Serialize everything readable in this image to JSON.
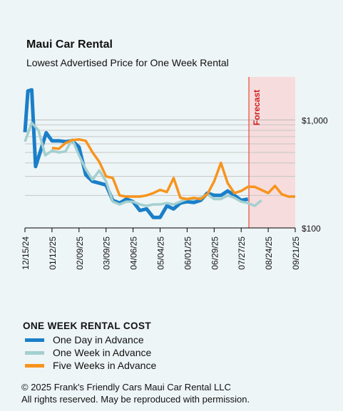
{
  "header": {
    "title": "Maui Car Rental",
    "subtitle": "Lowest Advertised Price for One Week Rental"
  },
  "chart_data": {
    "type": "line",
    "title": "Maui Car Rental",
    "subtitle": "Lowest Advertised Price for One Week Rental",
    "y_scale": "log",
    "ylim": [
      100,
      2500
    ],
    "y_ticks": [
      {
        "value": 1000,
        "label": "$1,000"
      },
      {
        "value": 100,
        "label": "$100"
      }
    ],
    "x_range": [
      "2024-12-15",
      "2025-09-21"
    ],
    "x_ticks": [
      "12/15/24",
      "01/12/25",
      "02/09/25",
      "03/09/25",
      "04/06/25",
      "05/04/25",
      "06/01/25",
      "06/29/25",
      "07/27/25",
      "08/24/25",
      "09/21/25"
    ],
    "forecast": {
      "label": "Forecast",
      "start": "2025-08-04",
      "end": "2025-09-21"
    },
    "legend_title": "ONE WEEK RENTAL COST",
    "legend_position": "bottom",
    "grid": true,
    "series": [
      {
        "name": "One Day in Advance",
        "color": "#1a7fc9",
        "points": [
          [
            "2024-12-15",
            770
          ],
          [
            "2024-12-18",
            1850
          ],
          [
            "2024-12-22",
            1900
          ],
          [
            "2024-12-26",
            370
          ],
          [
            "2024-12-30",
            480
          ],
          [
            "2025-01-06",
            760
          ],
          [
            "2025-01-12",
            640
          ],
          [
            "2025-01-19",
            640
          ],
          [
            "2025-01-26",
            630
          ],
          [
            "2025-02-02",
            640
          ],
          [
            "2025-02-09",
            560
          ],
          [
            "2025-02-16",
            310
          ],
          [
            "2025-02-23",
            270
          ],
          [
            "2025-03-02",
            260
          ],
          [
            "2025-03-09",
            250
          ],
          [
            "2025-03-16",
            180
          ],
          [
            "2025-03-23",
            170
          ],
          [
            "2025-03-30",
            185
          ],
          [
            "2025-04-06",
            175
          ],
          [
            "2025-04-13",
            145
          ],
          [
            "2025-04-20",
            150
          ],
          [
            "2025-04-27",
            125
          ],
          [
            "2025-05-04",
            125
          ],
          [
            "2025-05-11",
            160
          ],
          [
            "2025-05-18",
            150
          ],
          [
            "2025-05-25",
            170
          ],
          [
            "2025-06-01",
            175
          ],
          [
            "2025-06-08",
            172
          ],
          [
            "2025-06-15",
            180
          ],
          [
            "2025-06-22",
            210
          ],
          [
            "2025-06-29",
            200
          ],
          [
            "2025-07-06",
            200
          ],
          [
            "2025-07-13",
            220
          ],
          [
            "2025-07-20",
            200
          ],
          [
            "2025-07-27",
            180
          ],
          [
            "2025-08-03",
            185
          ]
        ]
      },
      {
        "name": "One Week in Advance",
        "color": "#a4cfd0",
        "points": [
          [
            "2024-12-15",
            630
          ],
          [
            "2024-12-22",
            940
          ],
          [
            "2024-12-29",
            800
          ],
          [
            "2025-01-05",
            470
          ],
          [
            "2025-01-12",
            520
          ],
          [
            "2025-01-19",
            500
          ],
          [
            "2025-01-26",
            510
          ],
          [
            "2025-02-02",
            660
          ],
          [
            "2025-02-09",
            470
          ],
          [
            "2025-02-16",
            350
          ],
          [
            "2025-02-23",
            280
          ],
          [
            "2025-03-02",
            340
          ],
          [
            "2025-03-09",
            270
          ],
          [
            "2025-03-16",
            175
          ],
          [
            "2025-03-23",
            165
          ],
          [
            "2025-03-30",
            175
          ],
          [
            "2025-04-06",
            175
          ],
          [
            "2025-04-13",
            165
          ],
          [
            "2025-04-20",
            160
          ],
          [
            "2025-04-27",
            165
          ],
          [
            "2025-05-04",
            165
          ],
          [
            "2025-05-11",
            170
          ],
          [
            "2025-05-18",
            165
          ],
          [
            "2025-05-25",
            175
          ],
          [
            "2025-06-01",
            185
          ],
          [
            "2025-06-08",
            185
          ],
          [
            "2025-06-15",
            190
          ],
          [
            "2025-06-22",
            205
          ],
          [
            "2025-06-29",
            185
          ],
          [
            "2025-07-06",
            185
          ],
          [
            "2025-07-13",
            200
          ],
          [
            "2025-07-20",
            190
          ],
          [
            "2025-07-27",
            175
          ],
          [
            "2025-08-03",
            170
          ],
          [
            "2025-08-10",
            160
          ],
          [
            "2025-08-17",
            180
          ]
        ]
      },
      {
        "name": "Five Weeks in Advance",
        "color": "#f7941d",
        "points": [
          [
            "2025-01-12",
            550
          ],
          [
            "2025-01-19",
            540
          ],
          [
            "2025-01-26",
            610
          ],
          [
            "2025-02-02",
            650
          ],
          [
            "2025-02-09",
            660
          ],
          [
            "2025-02-16",
            640
          ],
          [
            "2025-02-23",
            500
          ],
          [
            "2025-03-02",
            410
          ],
          [
            "2025-03-09",
            300
          ],
          [
            "2025-03-16",
            290
          ],
          [
            "2025-03-23",
            200
          ],
          [
            "2025-03-30",
            195
          ],
          [
            "2025-04-06",
            195
          ],
          [
            "2025-04-13",
            195
          ],
          [
            "2025-04-20",
            200
          ],
          [
            "2025-04-27",
            210
          ],
          [
            "2025-05-04",
            225
          ],
          [
            "2025-05-11",
            215
          ],
          [
            "2025-05-18",
            290
          ],
          [
            "2025-05-25",
            190
          ],
          [
            "2025-06-01",
            185
          ],
          [
            "2025-06-08",
            190
          ],
          [
            "2025-06-15",
            185
          ],
          [
            "2025-06-22",
            205
          ],
          [
            "2025-06-29",
            270
          ],
          [
            "2025-07-06",
            400
          ],
          [
            "2025-07-13",
            260
          ],
          [
            "2025-07-20",
            210
          ],
          [
            "2025-07-27",
            220
          ],
          [
            "2025-08-03",
            240
          ],
          [
            "2025-08-10",
            240
          ],
          [
            "2025-08-17",
            225
          ],
          [
            "2025-08-24",
            210
          ],
          [
            "2025-08-31",
            245
          ],
          [
            "2025-09-07",
            205
          ],
          [
            "2025-09-14",
            195
          ],
          [
            "2025-09-21",
            195
          ]
        ]
      }
    ]
  },
  "footer": {
    "line1": "© 2025 Frank's Friendly Cars Maui Car Rental LLC",
    "line2": "All rights reserved. May be reproduced with permission."
  }
}
